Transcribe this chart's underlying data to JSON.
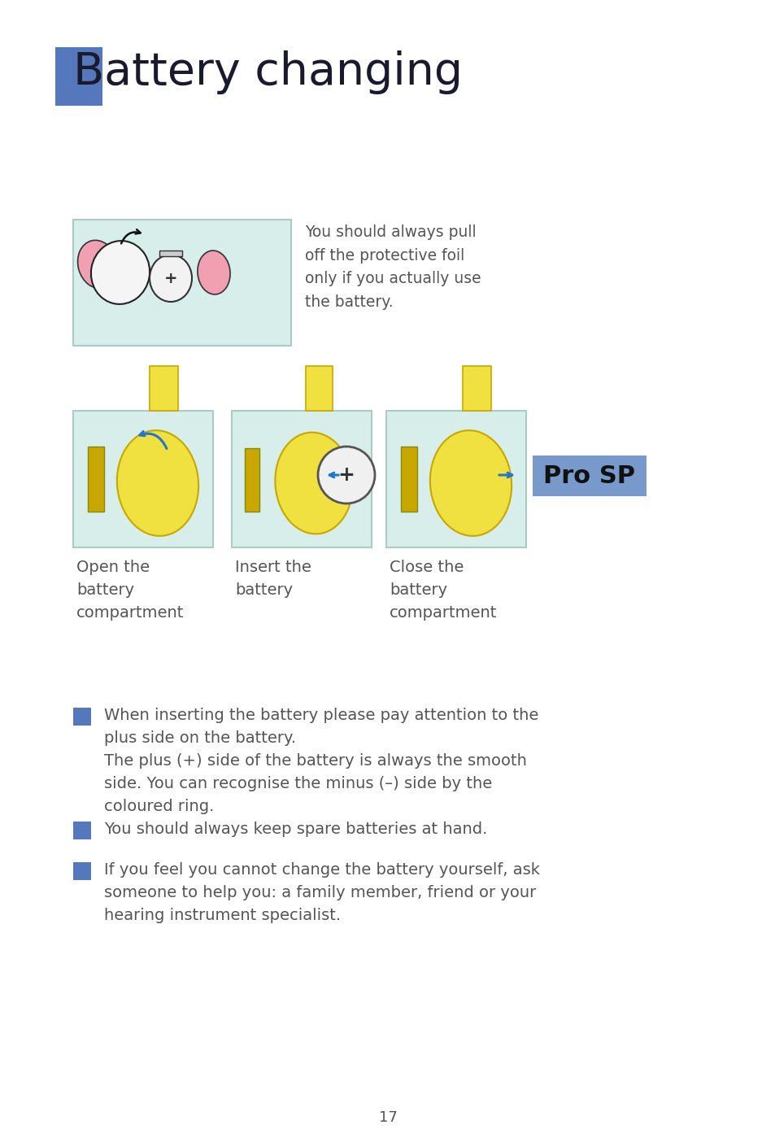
{
  "title": "Battery changing",
  "title_color": "#1a1a2e",
  "title_fontsize": 40,
  "blue_square_color": "#5577bb",
  "pro_sp_color": "#7799cc",
  "background_color": "#ffffff",
  "image_bg_color": "#d8eeea",
  "image_border_color": "#aaccc5",
  "body_text_color": "#555555",
  "dark_text_color": "#333333",
  "body_fontsize": 14,
  "caption_fontsize": 14,
  "foil_text": "You should always pull\noff the protective foil\nonly if you actually use\nthe battery.",
  "step_labels": [
    "Open the\nbattery\ncompartment",
    "Insert the\nbattery",
    "Close the\nbattery\ncompartment"
  ],
  "bullet_items": [
    "When inserting the battery please pay attention to the\nplus side on the battery.\nThe plus (+) side of the battery is always the smooth\nside. You can recognise the minus (–) side by the\ncoloured ring.",
    "You should always keep spare batteries at hand.",
    "If you feel you cannot change the battery yourself, ask\nsomeone to help you: a family member, friend or your\nhearing instrument specialist."
  ],
  "page_number": "17",
  "yellow_color": "#f0e040",
  "yellow_dark": "#c8a800",
  "gold_color": "#d4b000",
  "pink_color": "#f0a0b0"
}
